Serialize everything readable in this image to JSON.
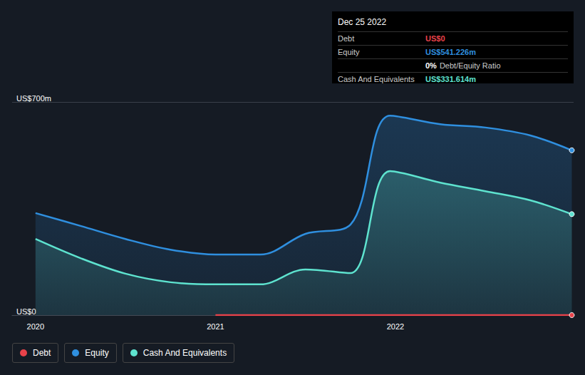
{
  "chart_data": {
    "type": "area",
    "x": [
      2020.0,
      2020.25,
      2020.5,
      2020.75,
      2021.0,
      2021.25,
      2021.5,
      2021.75,
      2021.97,
      2022.25,
      2022.5,
      2022.75,
      2022.98
    ],
    "series": [
      {
        "name": "Debt",
        "color": "#e8424a",
        "type": "line",
        "values": [
          null,
          null,
          null,
          null,
          0,
          0,
          0,
          0,
          0,
          0,
          0,
          0,
          0
        ]
      },
      {
        "name": "Equity",
        "color": "#2f8fdf",
        "values": [
          335,
          293,
          250,
          215,
          199,
          199,
          267,
          297,
          655,
          627,
          616,
          590,
          541.226
        ]
      },
      {
        "name": "Cash And Equivalents",
        "color": "#5ee3cf",
        "values": [
          250,
          187,
          136,
          108,
          101,
          101,
          150,
          138,
          473,
          435,
          407,
          377,
          331.614
        ]
      }
    ],
    "xlim": [
      2019.87,
      2022.99
    ],
    "xticks": [
      2020,
      2021,
      2022
    ],
    "ylim": [
      0,
      700
    ],
    "yticks": [
      {
        "value": 0,
        "label": "US$0"
      },
      {
        "value": 700,
        "label": "US$700m"
      }
    ],
    "grid": true,
    "legend": "bottom-left",
    "annotation": {
      "title": "Dec 25 2022",
      "rows": [
        {
          "label": "Debt",
          "value": "US$0",
          "color": "#e8424a"
        },
        {
          "label": "Equity",
          "value": "US$541.226m",
          "color": "#2f8fdf"
        },
        {
          "label": "Debt/Equity Ratio",
          "value": "0%",
          "color": "#ffffff"
        },
        {
          "label": "Cash And Equivalents",
          "value": "US$331.614m",
          "color": "#5ee3cf"
        }
      ]
    }
  }
}
